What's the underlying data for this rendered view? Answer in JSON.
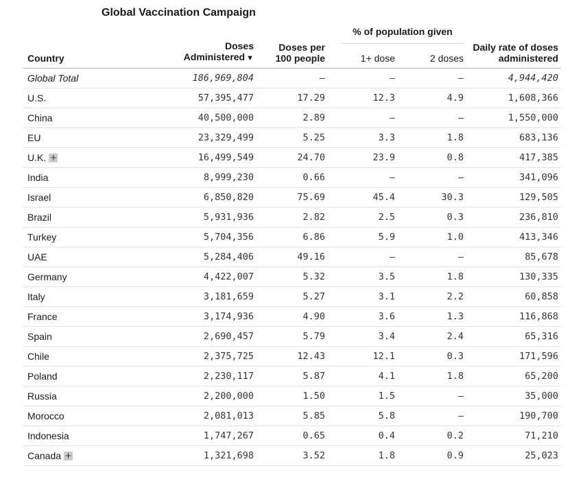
{
  "title": "Global Vaccination Campaign",
  "group_header": "% of population given",
  "headers": {
    "country": "Country",
    "doses_line1": "Doses",
    "doses_line2": "Administered",
    "per100_line1": "Doses per",
    "per100_line2": "100 people",
    "first_dose": "1+ dose",
    "second_dose": "2 doses",
    "rate_line1": "Daily rate of doses",
    "rate_line2": "administered"
  },
  "icons": {
    "sort": "sort-desc-icon",
    "expand": "expand-plus-icon"
  },
  "rows": [
    {
      "country": "Global Total",
      "doses": "186,969,804",
      "per100": "–",
      "first": "–",
      "second": "–",
      "rate": "4,944,420",
      "total": true
    },
    {
      "country": "U.S.",
      "doses": "57,395,477",
      "per100": "17.29",
      "first": "12.3",
      "second": "4.9",
      "rate": "1,608,366"
    },
    {
      "country": "China",
      "doses": "40,500,000",
      "per100": "2.89",
      "first": "–",
      "second": "–",
      "rate": "1,550,000"
    },
    {
      "country": "EU",
      "doses": "23,329,499",
      "per100": "5.25",
      "first": "3.3",
      "second": "1.8",
      "rate": "683,136"
    },
    {
      "country": "U.K.",
      "doses": "16,499,549",
      "per100": "24.70",
      "first": "23.9",
      "second": "0.8",
      "rate": "417,385",
      "expandable": true
    },
    {
      "country": "India",
      "doses": "8,999,230",
      "per100": "0.66",
      "first": "–",
      "second": "–",
      "rate": "341,096"
    },
    {
      "country": "Israel",
      "doses": "6,850,820",
      "per100": "75.69",
      "first": "45.4",
      "second": "30.3",
      "rate": "129,505"
    },
    {
      "country": "Brazil",
      "doses": "5,931,936",
      "per100": "2.82",
      "first": "2.5",
      "second": "0.3",
      "rate": "236,810"
    },
    {
      "country": "Turkey",
      "doses": "5,704,356",
      "per100": "6.86",
      "first": "5.9",
      "second": "1.0",
      "rate": "413,346"
    },
    {
      "country": "UAE",
      "doses": "5,284,406",
      "per100": "49.16",
      "first": "–",
      "second": "–",
      "rate": "85,678"
    },
    {
      "country": "Germany",
      "doses": "4,422,007",
      "per100": "5.32",
      "first": "3.5",
      "second": "1.8",
      "rate": "130,335"
    },
    {
      "country": "Italy",
      "doses": "3,181,659",
      "per100": "5.27",
      "first": "3.1",
      "second": "2.2",
      "rate": "60,858"
    },
    {
      "country": "France",
      "doses": "3,174,936",
      "per100": "4.90",
      "first": "3.6",
      "second": "1.3",
      "rate": "116,868"
    },
    {
      "country": "Spain",
      "doses": "2,690,457",
      "per100": "5.79",
      "first": "3.4",
      "second": "2.4",
      "rate": "65,316"
    },
    {
      "country": "Chile",
      "doses": "2,375,725",
      "per100": "12.43",
      "first": "12.1",
      "second": "0.3",
      "rate": "171,596"
    },
    {
      "country": "Poland",
      "doses": "2,230,117",
      "per100": "5.87",
      "first": "4.1",
      "second": "1.8",
      "rate": "65,200"
    },
    {
      "country": "Russia",
      "doses": "2,200,000",
      "per100": "1.50",
      "first": "1.5",
      "second": "–",
      "rate": "35,000"
    },
    {
      "country": "Morocco",
      "doses": "2,081,013",
      "per100": "5.85",
      "first": "5.8",
      "second": "–",
      "rate": "190,700"
    },
    {
      "country": "Indonesia",
      "doses": "1,747,267",
      "per100": "0.65",
      "first": "0.4",
      "second": "0.2",
      "rate": "71,210"
    },
    {
      "country": "Canada",
      "doses": "1,321,698",
      "per100": "3.52",
      "first": "1.8",
      "second": "0.9",
      "rate": "25,023",
      "expandable": true
    }
  ]
}
